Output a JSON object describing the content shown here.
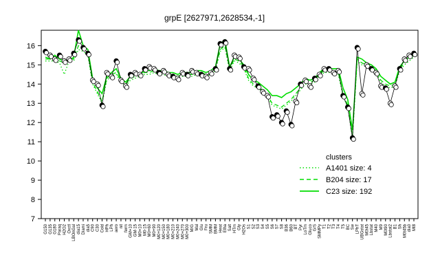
{
  "chart_data": {
    "type": "line",
    "title": "grpE [2627971,2628534,-1]",
    "xlabel": "",
    "ylabel": "",
    "ylim": [
      7,
      16.8
    ],
    "yticks": [
      7,
      8,
      9,
      10,
      11,
      12,
      13,
      14,
      15,
      16
    ],
    "grid": false,
    "legend_position": "right",
    "legend_title": "clusters",
    "x_tick_labels": [
      "G150",
      "G135",
      "G180",
      "Paraq",
      "H2O2",
      "Oxctl",
      "LBOnGal",
      "dia15",
      "Diami",
      "dia5",
      "C90",
      "C30",
      "Cold",
      "HPh",
      "LPh",
      "aero",
      "nit",
      "ferm",
      "GM+10",
      "GM-15",
      "M0+10",
      "M0-15",
      "M0+60",
      "M0+90",
      "M0+120",
      "M0+150",
      "M0+180",
      "M0+210",
      "M0+240",
      "M0+270",
      "M0+300",
      "M/G",
      "Mal",
      "Glu",
      "Fru",
      "SMM",
      "BMM",
      "Heat",
      "Etha",
      "Salt",
      "HTm",
      "Gly",
      "H2Os",
      "S1",
      "S2",
      "S3",
      "S4",
      "S5",
      "S6",
      "S7",
      "S8",
      "B36",
      "B60",
      "BT",
      "Pyr",
      "LoTm",
      "Gluco",
      "G/S",
      "SMMPy",
      "T1",
      "T2",
      "T3",
      "T4",
      "T5",
      "BC",
      "Sw",
      "LPhT",
      "UBGstat",
      "M0t45",
      "Lbstat",
      "M40",
      "M9",
      "M0t90",
      "Lbstat2",
      "B1",
      "Sh",
      "M0t45b",
      "dia0",
      "Mt8"
    ],
    "series": [
      {
        "name": "C23 size: 192",
        "style": "solid",
        "color": "#00dd00",
        "values": [
          15.4,
          15.3,
          15.5,
          15.3,
          15.2,
          15.2,
          15.4,
          16.8,
          16.0,
          15.8,
          14.3,
          13.8,
          13.5,
          14.4,
          14.6,
          14.8,
          14.3,
          14.1,
          14.4,
          14.5,
          14.5,
          14.7,
          14.7,
          14.8,
          14.7,
          14.7,
          14.6,
          14.6,
          14.5,
          14.6,
          14.6,
          14.6,
          14.7,
          14.7,
          14.6,
          14.7,
          14.9,
          16.1,
          16.3,
          14.9,
          15.4,
          15.3,
          15.0,
          14.5,
          14.2,
          14.1,
          13.9,
          13.7,
          13.4,
          13.4,
          13.3,
          13.5,
          13.6,
          13.8,
          14.0,
          14.3,
          14.2,
          14.3,
          14.6,
          14.8,
          14.8,
          14.8,
          14.8,
          13.8,
          13.2,
          11.6,
          15.4,
          15.3,
          15.1,
          15.0,
          14.8,
          14.4,
          14.2,
          14.0,
          14.1,
          14.9,
          15.2,
          15.4,
          15.6
        ]
      },
      {
        "name": "B204 size: 17",
        "style": "dashed",
        "color": "#00dd00",
        "values": [
          15.3,
          15.3,
          15.3,
          15.2,
          15.1,
          15.3,
          15.3,
          16.0,
          15.8,
          15.6,
          14.1,
          13.6,
          13.1,
          14.3,
          14.5,
          14.6,
          14.2,
          14.0,
          14.3,
          14.4,
          14.5,
          14.6,
          14.6,
          14.7,
          14.6,
          14.6,
          14.5,
          14.5,
          14.4,
          14.5,
          14.5,
          14.5,
          14.6,
          14.6,
          14.5,
          14.6,
          14.8,
          15.8,
          16.0,
          14.8,
          15.3,
          15.2,
          14.9,
          14.3,
          14.0,
          13.9,
          13.7,
          13.4,
          13.0,
          12.9,
          12.8,
          13.0,
          13.2,
          13.5,
          13.8,
          14.1,
          14.1,
          14.2,
          14.5,
          14.7,
          14.7,
          14.7,
          14.6,
          13.5,
          12.9,
          11.3,
          15.3,
          15.1,
          15.0,
          14.9,
          14.7,
          14.2,
          14.0,
          13.9,
          14.0,
          14.8,
          15.1,
          15.3,
          15.5
        ]
      },
      {
        "name": "A1401 size: 4",
        "style": "dotted",
        "color": "#00dd00",
        "values": [
          15.2,
          15.2,
          15.2,
          15.1,
          14.5,
          15.2,
          15.2,
          15.8,
          15.7,
          15.5,
          14.0,
          13.5,
          13.0,
          14.2,
          14.4,
          14.5,
          14.1,
          13.9,
          14.2,
          14.3,
          14.4,
          14.5,
          14.5,
          14.6,
          14.5,
          14.5,
          14.4,
          14.4,
          14.3,
          14.4,
          14.4,
          14.4,
          14.5,
          14.5,
          14.4,
          14.5,
          14.7,
          15.7,
          15.9,
          14.7,
          15.2,
          15.1,
          14.8,
          14.2,
          13.9,
          13.8,
          13.6,
          13.3,
          12.9,
          12.8,
          12.7,
          12.9,
          13.1,
          13.4,
          13.7,
          14.0,
          14.0,
          14.1,
          14.4,
          14.6,
          14.6,
          14.6,
          14.5,
          13.4,
          12.8,
          11.2,
          15.2,
          15.0,
          14.9,
          14.8,
          14.6,
          14.1,
          13.9,
          13.8,
          13.9,
          14.7,
          15.0,
          15.2,
          15.4
        ]
      }
    ],
    "points": [
      15.7,
      15.5,
      15.3,
      15.5,
      15.2,
      15.3,
      15.6,
      16.3,
      15.9,
      15.6,
      14.2,
      14.0,
      12.9,
      14.6,
      14.4,
      15.2,
      14.2,
      13.9,
      14.5,
      14.6,
      14.5,
      14.8,
      14.9,
      14.8,
      14.6,
      14.7,
      14.5,
      14.4,
      14.3,
      14.6,
      14.5,
      14.7,
      14.6,
      14.5,
      14.4,
      14.6,
      14.8,
      16.1,
      16.2,
      14.8,
      15.5,
      15.4,
      14.9,
      14.8,
      14.3,
      13.9,
      13.6,
      13.4,
      12.3,
      12.4,
      12.0,
      12.6,
      11.9,
      13.1,
      14.0,
      14.2,
      13.9,
      14.3,
      14.5,
      14.8,
      14.8,
      14.6,
      14.7,
      13.4,
      12.8,
      11.2,
      15.9,
      13.5,
      15.0,
      14.8,
      14.6,
      13.9,
      13.8,
      13.0,
      13.9,
      14.8,
      15.3,
      15.5,
      15.6
    ]
  }
}
